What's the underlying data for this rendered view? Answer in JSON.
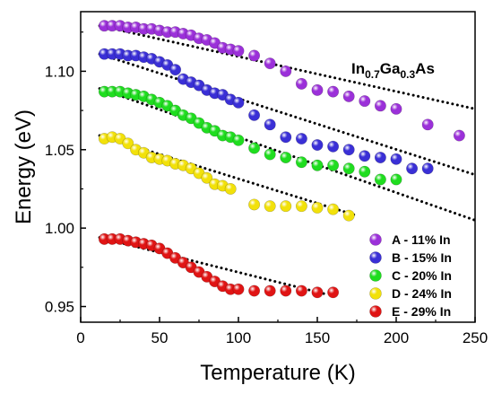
{
  "chart_data": {
    "type": "scatter",
    "xlabel": "Temperature (K)",
    "ylabel": "Energy (eV)",
    "xlim": [
      0,
      250
    ],
    "ylim": [
      0.94,
      1.138
    ],
    "xticks": [
      "0",
      "50",
      "100",
      "150",
      "200",
      "250"
    ],
    "yticks": [
      "0.95",
      "1.00",
      "1.05",
      "1.10"
    ],
    "xtick_values": [
      0,
      50,
      100,
      150,
      200,
      250
    ],
    "ytick_values": [
      0.95,
      1.0,
      1.05,
      1.1
    ],
    "grid": false,
    "legend_position": "bottom-right",
    "annotation": {
      "main": "In",
      "sub1": "0.7",
      "mid": "Ga",
      "sub2": "0.3",
      "tail": "As"
    },
    "series": [
      {
        "name": "A - 11% In",
        "color": "#9b30d9",
        "x": [
          15,
          20,
          25,
          30,
          35,
          40,
          45,
          50,
          55,
          60,
          65,
          70,
          75,
          80,
          85,
          90,
          95,
          100,
          110,
          120,
          130,
          140,
          150,
          160,
          170,
          180,
          190,
          200,
          220,
          240
        ],
        "y": [
          1.129,
          1.129,
          1.129,
          1.128,
          1.128,
          1.127,
          1.127,
          1.126,
          1.125,
          1.125,
          1.124,
          1.123,
          1.121,
          1.12,
          1.118,
          1.115,
          1.114,
          1.113,
          1.11,
          1.105,
          1.1,
          1.092,
          1.088,
          1.087,
          1.084,
          1.081,
          1.078,
          1.076,
          1.066,
          1.059
        ],
        "fit": [
          [
            12,
            1.129
          ],
          [
            250,
            1.076
          ]
        ]
      },
      {
        "name": "B - 15% In",
        "color": "#3a2fd6",
        "x": [
          15,
          20,
          25,
          30,
          35,
          40,
          45,
          50,
          55,
          60,
          65,
          70,
          75,
          80,
          85,
          90,
          95,
          100,
          110,
          120,
          130,
          140,
          150,
          160,
          170,
          180,
          190,
          200,
          210,
          220
        ],
        "y": [
          1.111,
          1.111,
          1.111,
          1.11,
          1.11,
          1.109,
          1.108,
          1.106,
          1.104,
          1.101,
          1.095,
          1.093,
          1.091,
          1.088,
          1.086,
          1.085,
          1.082,
          1.08,
          1.072,
          1.066,
          1.058,
          1.057,
          1.053,
          1.052,
          1.05,
          1.046,
          1.045,
          1.044,
          1.038,
          1.038
        ],
        "fit": [
          [
            12,
            1.111
          ],
          [
            250,
            1.034
          ]
        ]
      },
      {
        "name": "C - 20% In",
        "color": "#1fdd1f",
        "x": [
          15,
          20,
          25,
          30,
          35,
          40,
          45,
          50,
          55,
          60,
          65,
          70,
          75,
          80,
          85,
          90,
          95,
          100,
          110,
          120,
          130,
          140,
          150,
          160,
          170,
          180,
          190,
          200
        ],
        "y": [
          1.087,
          1.087,
          1.087,
          1.086,
          1.085,
          1.084,
          1.082,
          1.08,
          1.078,
          1.075,
          1.072,
          1.07,
          1.067,
          1.064,
          1.062,
          1.059,
          1.058,
          1.056,
          1.051,
          1.047,
          1.045,
          1.042,
          1.04,
          1.04,
          1.038,
          1.036,
          1.031,
          1.031
        ],
        "fit": [
          [
            12,
            1.089
          ],
          [
            250,
            1.005
          ]
        ]
      },
      {
        "name": "D - 24% In",
        "color": "#f2e10a",
        "x": [
          15,
          20,
          25,
          30,
          35,
          40,
          45,
          50,
          55,
          60,
          65,
          70,
          75,
          80,
          85,
          90,
          95,
          110,
          120,
          130,
          140,
          150,
          160,
          170
        ],
        "y": [
          1.057,
          1.058,
          1.057,
          1.054,
          1.05,
          1.048,
          1.045,
          1.044,
          1.043,
          1.041,
          1.04,
          1.038,
          1.035,
          1.032,
          1.028,
          1.027,
          1.025,
          1.015,
          1.014,
          1.014,
          1.014,
          1.013,
          1.012,
          1.008
        ],
        "fit": [
          [
            12,
            1.059
          ],
          [
            175,
            1.008
          ]
        ]
      },
      {
        "name": "E - 29% In",
        "color": "#e01414",
        "x": [
          15,
          20,
          25,
          30,
          35,
          40,
          45,
          50,
          55,
          60,
          65,
          70,
          75,
          80,
          85,
          90,
          95,
          100,
          110,
          120,
          130,
          140,
          150,
          160
        ],
        "y": [
          0.993,
          0.993,
          0.993,
          0.992,
          0.991,
          0.99,
          0.989,
          0.987,
          0.984,
          0.981,
          0.978,
          0.975,
          0.972,
          0.969,
          0.966,
          0.963,
          0.961,
          0.961,
          0.96,
          0.96,
          0.96,
          0.96,
          0.959,
          0.959
        ],
        "fit": [
          [
            12,
            0.994
          ],
          [
            155,
            0.958
          ]
        ]
      }
    ]
  }
}
